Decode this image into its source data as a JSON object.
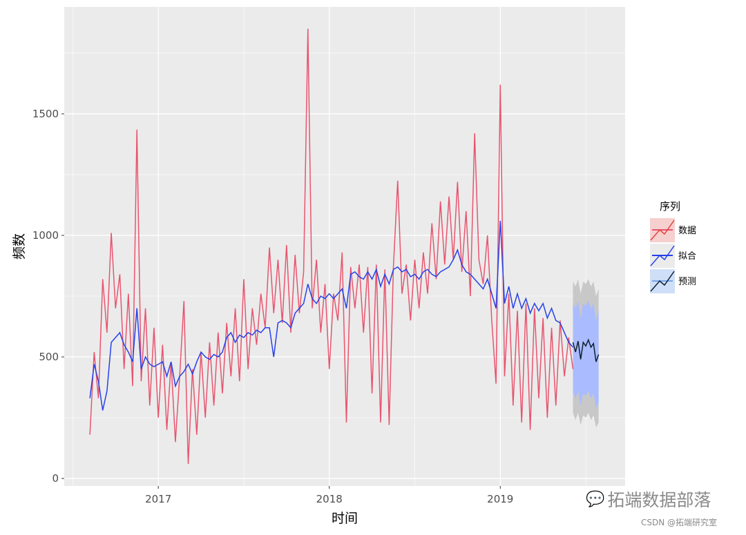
{
  "chart_data": {
    "type": "line",
    "xlabel": "时间",
    "ylabel": "频数",
    "xlim": [
      2016.45,
      2019.73
    ],
    "ylim": [
      -31,
      1940
    ],
    "x_ticks": [
      {
        "value": 2017,
        "label": "2017"
      },
      {
        "value": 2018,
        "label": "2018"
      },
      {
        "value": 2019,
        "label": "2019"
      }
    ],
    "y_ticks": [
      {
        "value": 0,
        "label": "0"
      },
      {
        "value": 500,
        "label": "500"
      },
      {
        "value": 1000,
        "label": "1000"
      },
      {
        "value": 1500,
        "label": "1500"
      }
    ],
    "grid": true,
    "legend": {
      "title": "序列",
      "placement": "right"
    },
    "colors": {
      "panel": "#ebebeb",
      "grid": "#ffffff",
      "data": "#e8546e",
      "fit": "#2641e8",
      "forecast": "#0f1f2f",
      "band80": "#aabcff",
      "band95": "#c8c8c8"
    },
    "series": [
      {
        "name": "数据",
        "key_fill": "#f6cfcf",
        "key_hline": "#e8546e",
        "x_start": 2016.6,
        "x_step": 0.025,
        "values": [
          180,
          520,
          330,
          820,
          600,
          1010,
          700,
          840,
          450,
          760,
          380,
          1435,
          400,
          700,
          300,
          620,
          250,
          550,
          200,
          480,
          150,
          420,
          730,
          60,
          450,
          180,
          520,
          250,
          560,
          300,
          600,
          350,
          640,
          420,
          700,
          400,
          820,
          450,
          700,
          550,
          760,
          620,
          950,
          680,
          900,
          640,
          960,
          600,
          920,
          680,
          850,
          1850,
          700,
          900,
          600,
          800,
          450,
          760,
          650,
          930,
          230,
          870,
          700,
          880,
          600,
          870,
          350,
          880,
          230,
          860,
          220,
          870,
          1225,
          760,
          880,
          650,
          900,
          700,
          930,
          760,
          1050,
          820,
          1140,
          880,
          1160,
          900,
          1220,
          850,
          1100,
          750,
          1420,
          900,
          800,
          1000,
          650,
          390,
          1620,
          420,
          760,
          300,
          690,
          230,
          720,
          200,
          700,
          330,
          660,
          250,
          620,
          300,
          650,
          420,
          580,
          450
        ]
      },
      {
        "name": "拟合",
        "key_fill": "#ebebeb",
        "key_hline": "#2641e8",
        "x_start": 2016.6,
        "x_step": 0.025,
        "values": [
          330,
          470,
          400,
          280,
          360,
          560,
          580,
          600,
          550,
          520,
          480,
          700,
          450,
          500,
          470,
          460,
          470,
          480,
          420,
          480,
          380,
          420,
          440,
          470,
          430,
          480,
          520,
          500,
          490,
          510,
          500,
          520,
          580,
          600,
          560,
          590,
          580,
          600,
          590,
          610,
          600,
          620,
          620,
          500,
          640,
          650,
          640,
          620,
          680,
          700,
          720,
          800,
          740,
          720,
          750,
          740,
          760,
          740,
          760,
          780,
          700,
          840,
          850,
          830,
          820,
          850,
          820,
          860,
          790,
          840,
          800,
          860,
          870,
          850,
          860,
          830,
          840,
          820,
          850,
          860,
          840,
          830,
          850,
          860,
          870,
          900,
          940,
          880,
          850,
          840,
          820,
          800,
          780,
          820,
          760,
          700,
          1060,
          720,
          790,
          700,
          760,
          700,
          740,
          680,
          720,
          690,
          720,
          660,
          700,
          650,
          640,
          600,
          560,
          540
        ]
      },
      {
        "name": "预测",
        "key_fill": "#cfdff7",
        "key_hline": "#7aa5ee",
        "x": [
          2019.425,
          2019.44,
          2019.455,
          2019.47,
          2019.485,
          2019.5,
          2019.515,
          2019.53,
          2019.545,
          2019.56,
          2019.575
        ],
        "values": [
          560,
          520,
          565,
          490,
          560,
          545,
          570,
          540,
          555,
          480,
          510
        ],
        "lo80": [
          360,
          330,
          360,
          300,
          350,
          340,
          360,
          330,
          350,
          290,
          310
        ],
        "hi80": [
          720,
          700,
          730,
          660,
          720,
          710,
          730,
          700,
          720,
          650,
          690
        ],
        "lo95": [
          270,
          240,
          270,
          220,
          260,
          250,
          270,
          240,
          260,
          210,
          230
        ],
        "hi95": [
          810,
          790,
          820,
          760,
          810,
          800,
          820,
          790,
          810,
          750,
          780
        ]
      }
    ]
  },
  "watermark": {
    "brand": "拓端数据部落",
    "credit": "CSDN @拓端研究室"
  }
}
